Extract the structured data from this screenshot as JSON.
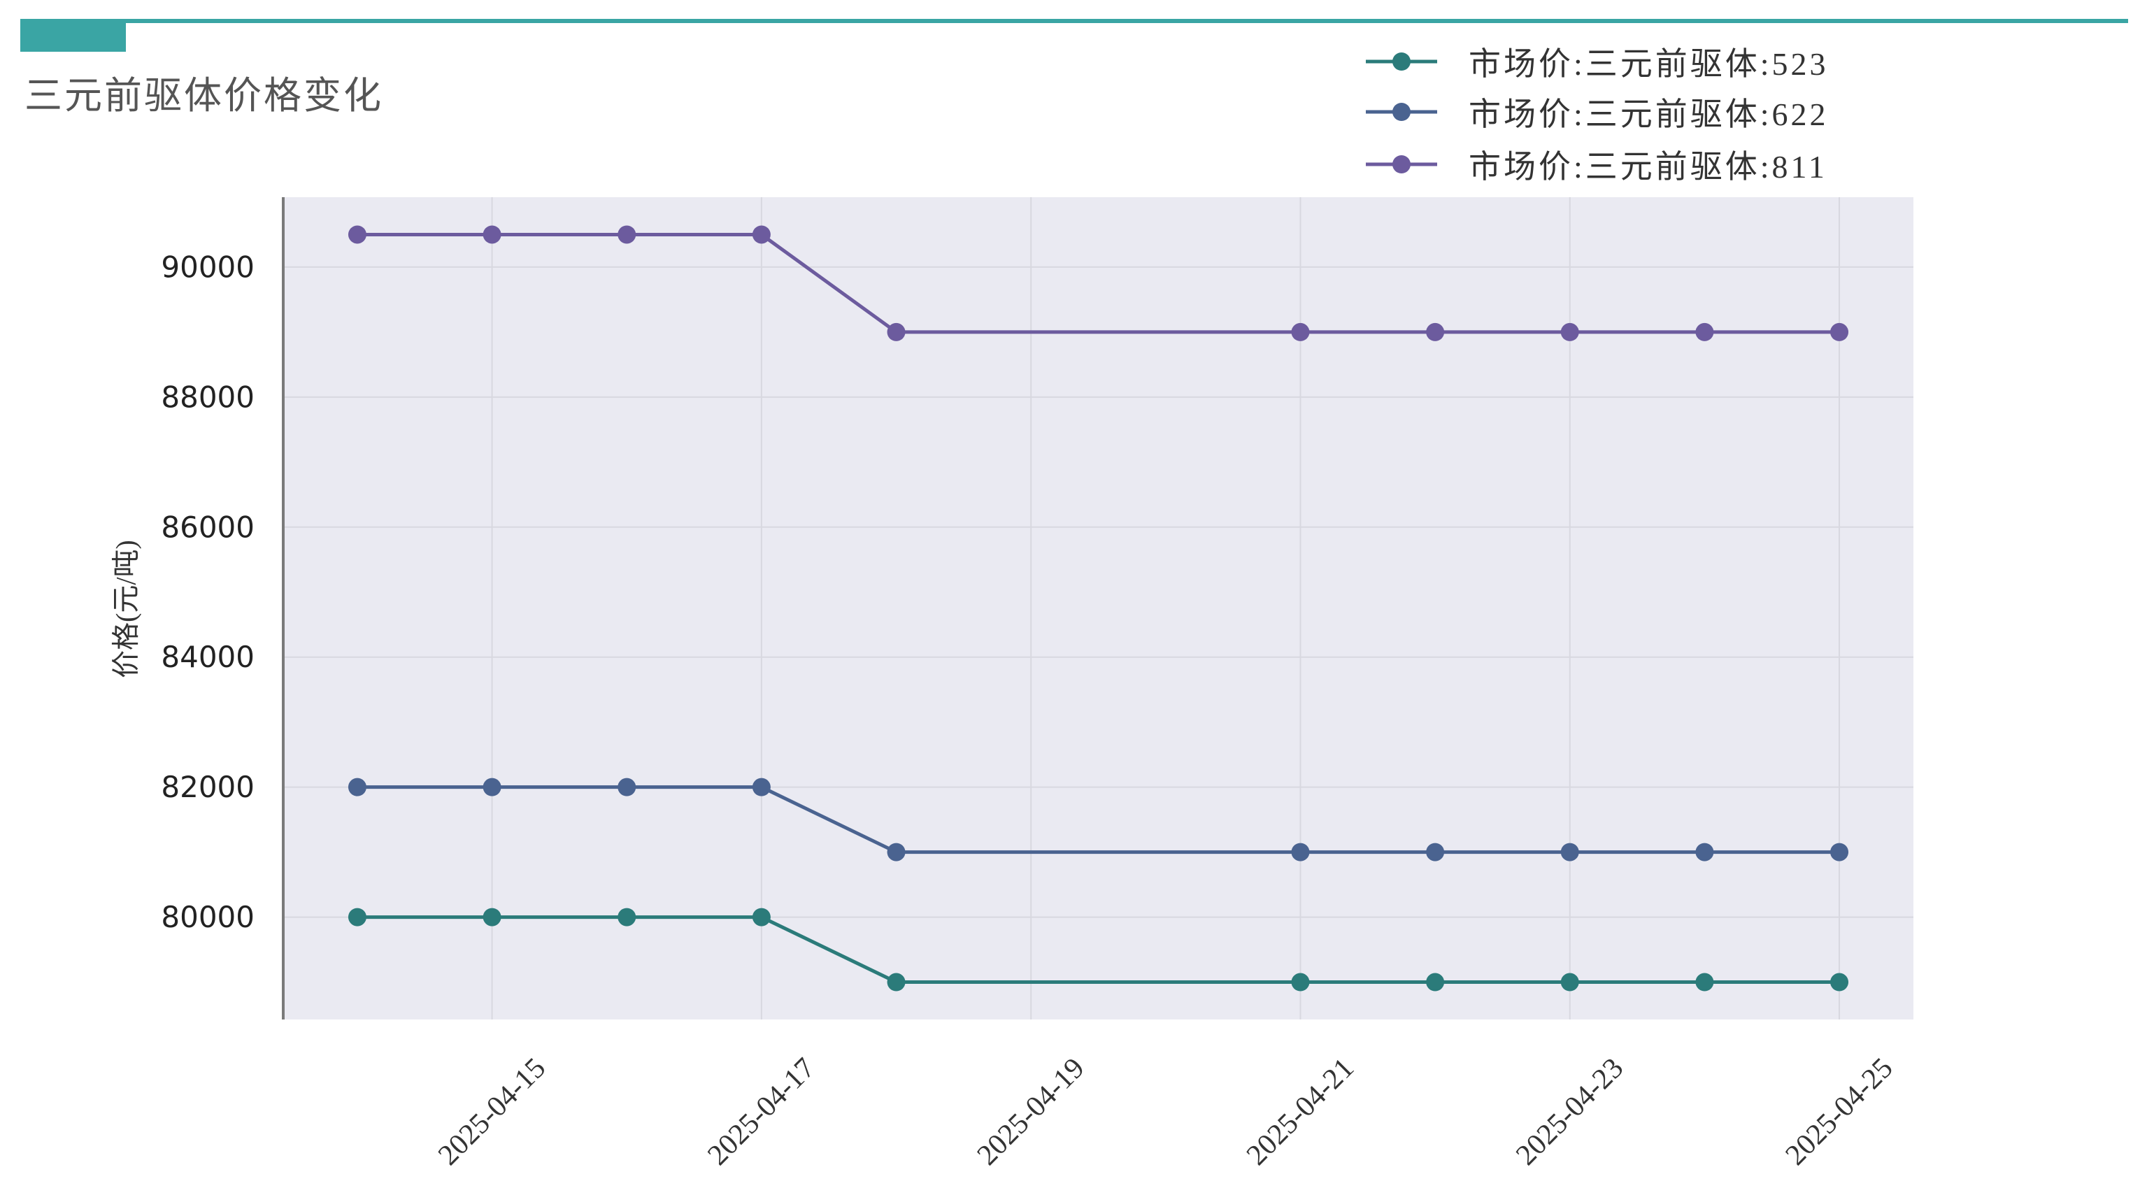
{
  "theme": {
    "accent": "#3aa5a4",
    "plot_background": "#eaeaf2"
  },
  "chart_data": {
    "type": "line",
    "title": "三元前驱体价格变化",
    "xlabel": "",
    "ylabel": "价格(元/吨)",
    "x": [
      "2025-04-14",
      "2025-04-15",
      "2025-04-16",
      "2025-04-17",
      "2025-04-18",
      "2025-04-21",
      "2025-04-22",
      "2025-04-23",
      "2025-04-24",
      "2025-04-25"
    ],
    "series": [
      {
        "name": "市场价:三元前驱体:523",
        "color": "#2b7b7a",
        "values": [
          80000,
          80000,
          80000,
          80000,
          79000,
          79000,
          79000,
          79000,
          79000,
          79000
        ]
      },
      {
        "name": "市场价:三元前驱体:622",
        "color": "#4a6390",
        "values": [
          82000,
          82000,
          82000,
          82000,
          81000,
          81000,
          81000,
          81000,
          81000,
          81000
        ]
      },
      {
        "name": "市场价:三元前驱体:811",
        "color": "#6c5b9e",
        "values": [
          90500,
          90500,
          90500,
          90500,
          89000,
          89000,
          89000,
          89000,
          89000,
          89000
        ]
      }
    ],
    "xticks": [
      "2025-04-15",
      "2025-04-17",
      "2025-04-19",
      "2025-04-21",
      "2025-04-23",
      "2025-04-25"
    ],
    "yticks": [
      80000,
      82000,
      84000,
      86000,
      88000,
      90000
    ],
    "xlim": [
      "2025-04-13T10:48",
      "2025-04-25T13:12"
    ],
    "ylim": [
      78425,
      91075
    ],
    "grid": true,
    "legend": "top-right"
  }
}
